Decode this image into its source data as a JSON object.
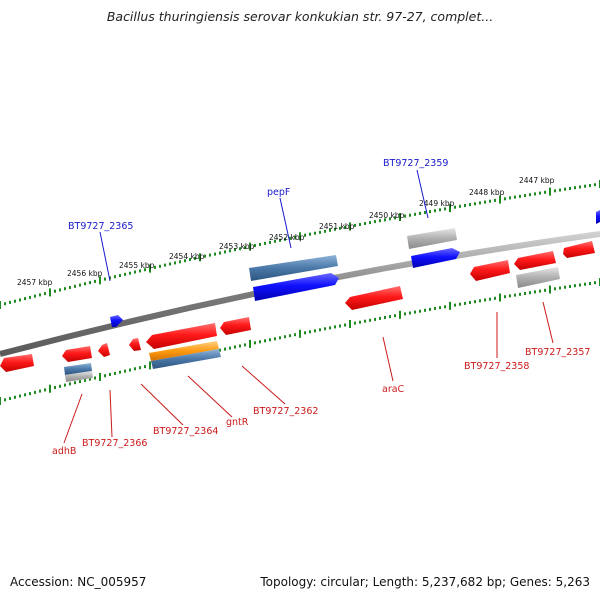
{
  "title": "Bacillus thuringiensis serovar konkukian str. 97-27, complet...",
  "footer": {
    "accession": "Accession: NC_005957",
    "topology": "Topology: circular; Length: 5,237,682 bp; Genes: 5,263"
  },
  "colors": {
    "backbone": "#8a8a8a",
    "tick": "#1f8a1f",
    "forward_gene": "#1a1aff",
    "reverse_gene": "#ff2020",
    "pseudo_gene": "#a8a8a8",
    "rna_gene": "#4f7fae",
    "orange_gene": "#ff9a1a",
    "label_forward": "#1a1acc",
    "label_reverse": "#cc1a1a"
  },
  "kbp_labels": [
    "2447 kbp",
    "2448 kbp",
    "2449 kbp",
    "2450 kbp",
    "2451 kbp",
    "2452 kbp",
    "2453 kbp",
    "2454 kbp",
    "2455 kbp",
    "2456 kbp",
    "2457 kbp"
  ],
  "gene_labels": {
    "top": [
      "BT9727_2359",
      "pepF",
      "BT9727_2365"
    ],
    "bottom": [
      "BT9727_2357",
      "BT9727_2358",
      "araC",
      "BT9727_2362",
      "gntR",
      "BT9727_2364",
      "BT9727_2366",
      "adhB"
    ]
  }
}
